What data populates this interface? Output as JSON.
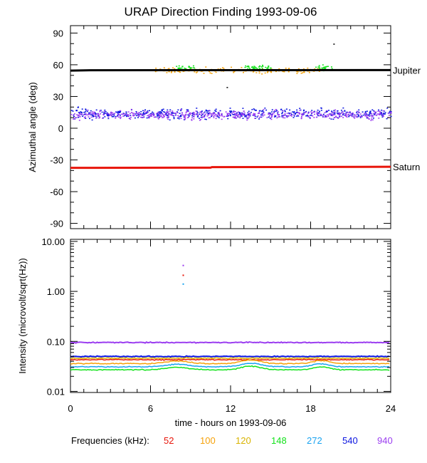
{
  "title": "URAP Direction Finding  1993-09-06",
  "xlabel": "time - hours on 1993-09-06",
  "frequency_legend": {
    "label": "Frequencies (kHz):",
    "items": [
      {
        "value": "52",
        "color": "#e8160b"
      },
      {
        "value": "100",
        "color": "#f6a20a"
      },
      {
        "value": "120",
        "color": "#d9b300"
      },
      {
        "value": "148",
        "color": "#12e21a"
      },
      {
        "value": "272",
        "color": "#1aa3f0"
      },
      {
        "value": "540",
        "color": "#0b14e0"
      },
      {
        "value": "940",
        "color": "#9b3df0"
      }
    ]
  },
  "chart_data": [
    {
      "type": "scatter",
      "ylabel": "Azimuthal angle (deg)",
      "xlim": [
        0,
        24
      ],
      "ylim": [
        -95,
        97
      ],
      "x_ticks": [
        0,
        6,
        12,
        18,
        24
      ],
      "y_ticks": [
        90,
        60,
        30,
        0,
        -30,
        -60,
        -90
      ],
      "grid": false,
      "reference_lines": [
        {
          "name": "Jupiter",
          "color": "#000000",
          "y": [
            [
              0,
              54.5
            ],
            [
              1.5,
              54.8
            ],
            [
              24,
              55
            ]
          ]
        },
        {
          "name": "Saturn",
          "color": "#e8160b",
          "y": [
            [
              0,
              -37.5
            ],
            [
              10.5,
              -37.3
            ],
            [
              10.6,
              -36.8
            ],
            [
              24,
              -36.5
            ]
          ]
        }
      ],
      "series": [
        {
          "freq": "100",
          "color": "#f6a20a",
          "x_range": [
            6.3,
            18.8
          ],
          "y_center": 55,
          "y_spread": 4
        },
        {
          "freq": "148",
          "color": "#12e21a",
          "segments": [
            [
              7.8,
              9.3
            ],
            [
              12.8,
              15.0
            ],
            [
              18.3,
              19.6
            ]
          ],
          "y_center": 58,
          "y_spread": 4
        },
        {
          "freq": "540",
          "color": "#0b14e0",
          "x_range": [
            0,
            24
          ],
          "y_center": 14,
          "y_spread": 7
        },
        {
          "freq": "940",
          "color": "#9b3df0",
          "x_range": [
            0,
            24
          ],
          "y_center": 13,
          "y_spread": 6
        }
      ]
    },
    {
      "type": "line",
      "ylabel": "Intensity (microvolt/sqrt(Hz))",
      "yscale": "log",
      "xlim": [
        0,
        24
      ],
      "ylim": [
        0.0095,
        11
      ],
      "y_ticks": [
        "0.01",
        "0.10",
        "1.00",
        "10.00"
      ],
      "x_ticks": [
        0,
        6,
        12,
        18,
        24
      ],
      "grid": false,
      "series": [
        {
          "freq": "940",
          "color": "#9b3df0",
          "level": 0.095
        },
        {
          "freq": "540",
          "color": "#0b14e0",
          "level": 0.05
        },
        {
          "freq": "52",
          "color": "#e8160b",
          "level": 0.043
        },
        {
          "freq": "120",
          "color": "#d9b300",
          "level": 0.046
        },
        {
          "freq": "100",
          "color": "#f6a20a",
          "level": 0.036
        },
        {
          "freq": "272",
          "color": "#1aa3f0",
          "level": 0.031
        },
        {
          "freq": "148",
          "color": "#12e21a",
          "level": 0.027
        }
      ],
      "spikes": [
        {
          "x": 8.4,
          "values": [
            3.3,
            2.1,
            1.4
          ],
          "colors": [
            "#9b3df0",
            "#e8160b",
            "#1aa3f0"
          ]
        }
      ]
    }
  ]
}
